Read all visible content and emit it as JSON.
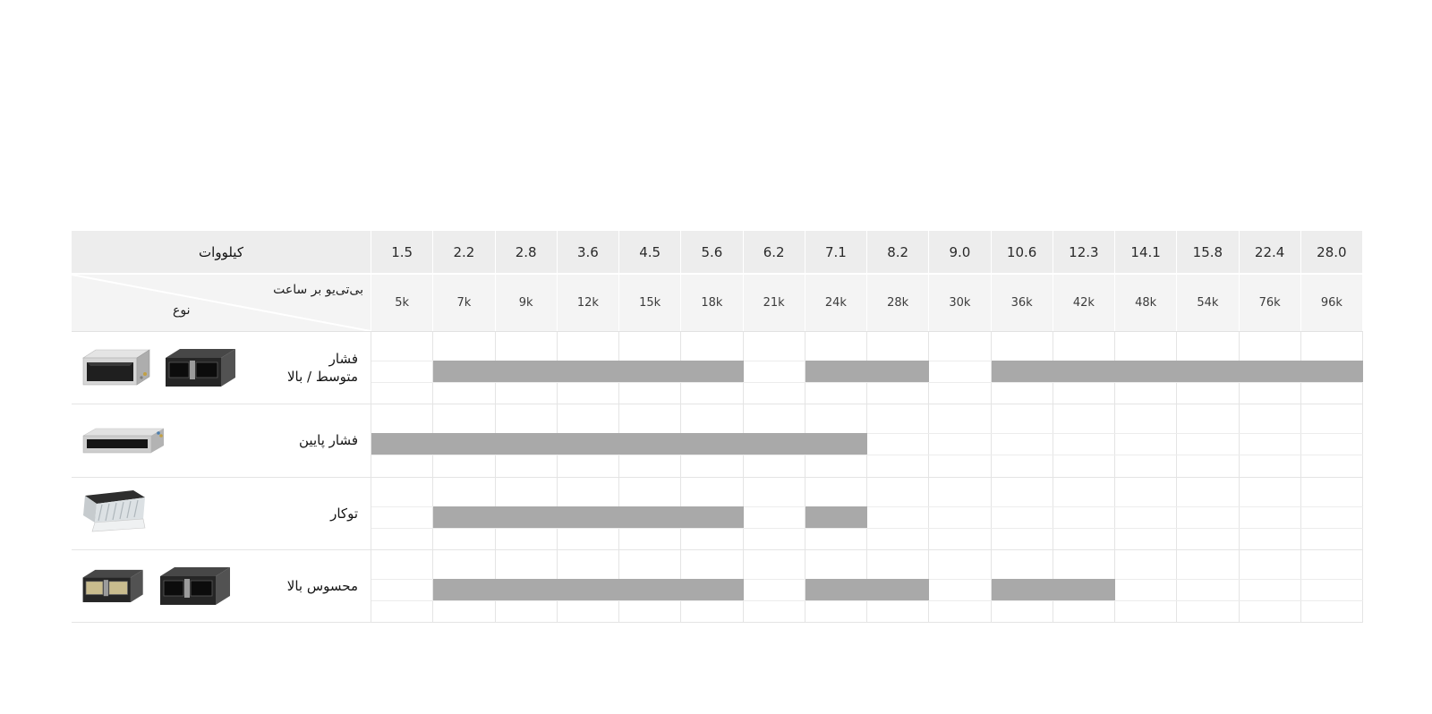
{
  "chart_data": {
    "type": "table",
    "description": "Ducted air-conditioner capacity lineup: gray bars mark available capacity ranges per unit type",
    "columns_kw": [
      "1.5",
      "2.2",
      "2.8",
      "3.6",
      "4.5",
      "5.6",
      "6.2",
      "7.1",
      "8.2",
      "9.0",
      "10.6",
      "12.3",
      "14.1",
      "15.8",
      "22.4",
      "28.0"
    ],
    "columns_btu_per_hour": [
      "5k",
      "7k",
      "9k",
      "12k",
      "15k",
      "18k",
      "21k",
      "24k",
      "28k",
      "30k",
      "36k",
      "42k",
      "48k",
      "54k",
      "76k",
      "96k"
    ],
    "series": [
      {
        "name": "فشار متوسط / بالا",
        "capacity_ranges_kw": [
          [
            "2.2",
            "5.6"
          ],
          [
            "7.1",
            "8.2"
          ],
          [
            "10.6",
            "28.0"
          ]
        ]
      },
      {
        "name": "فشار پایین",
        "capacity_ranges_kw": [
          [
            "1.5",
            "7.1"
          ]
        ]
      },
      {
        "name": "توکار",
        "capacity_ranges_kw": [
          [
            "2.2",
            "5.6"
          ],
          [
            "7.1",
            "7.1"
          ]
        ]
      },
      {
        "name": "محسوس بالا",
        "capacity_ranges_kw": [
          [
            "2.2",
            "5.6"
          ],
          [
            "7.1",
            "8.2"
          ],
          [
            "10.6",
            "12.3"
          ]
        ]
      }
    ],
    "bar_color": "#a9a9a9",
    "legend_position": "none",
    "grid": true
  },
  "table": {
    "header": {
      "kw_label": "کیلووات",
      "btu_label": "بی‌تی‌یو بر ساعت",
      "type_label": "نوع",
      "kw_values": [
        "1.5",
        "2.2",
        "2.8",
        "3.6",
        "4.5",
        "5.6",
        "6.2",
        "7.1",
        "8.2",
        "9.0",
        "10.6",
        "12.3",
        "14.1",
        "15.8",
        "22.4",
        "28.0"
      ],
      "btu_values": [
        "5k",
        "7k",
        "9k",
        "12k",
        "15k",
        "18k",
        "21k",
        "24k",
        "28k",
        "30k",
        "36k",
        "42k",
        "48k",
        "54k",
        "76k",
        "96k"
      ]
    },
    "rows": [
      {
        "label": "فشار\nمتوسط / بالا",
        "images": [
          "ducted-unit-silver",
          "ducted-unit-dark"
        ],
        "bars": [
          [
            2,
            6
          ],
          [
            8,
            9
          ],
          [
            11,
            16
          ]
        ]
      },
      {
        "label": "فشار پایین",
        "images": [
          "ducted-unit-slim-silver"
        ],
        "bars": [
          [
            1,
            8
          ]
        ]
      },
      {
        "label": "توکار",
        "images": [
          "concealed-unit-angled"
        ],
        "bars": [
          [
            2,
            6
          ],
          [
            8,
            8
          ]
        ]
      },
      {
        "label": "محسوس بالا",
        "images": [
          "ducted-unit-dark-small",
          "ducted-unit-dark"
        ],
        "bars": [
          [
            2,
            6
          ],
          [
            8,
            9
          ],
          [
            11,
            12
          ]
        ]
      }
    ],
    "colors": {
      "bar": "#a9a9a9",
      "header_row1_bg": "#ededed",
      "header_row2_bg": "#f4f4f4",
      "grid_line": "#e4e4e4",
      "page_bg": "#ffffff"
    }
  }
}
